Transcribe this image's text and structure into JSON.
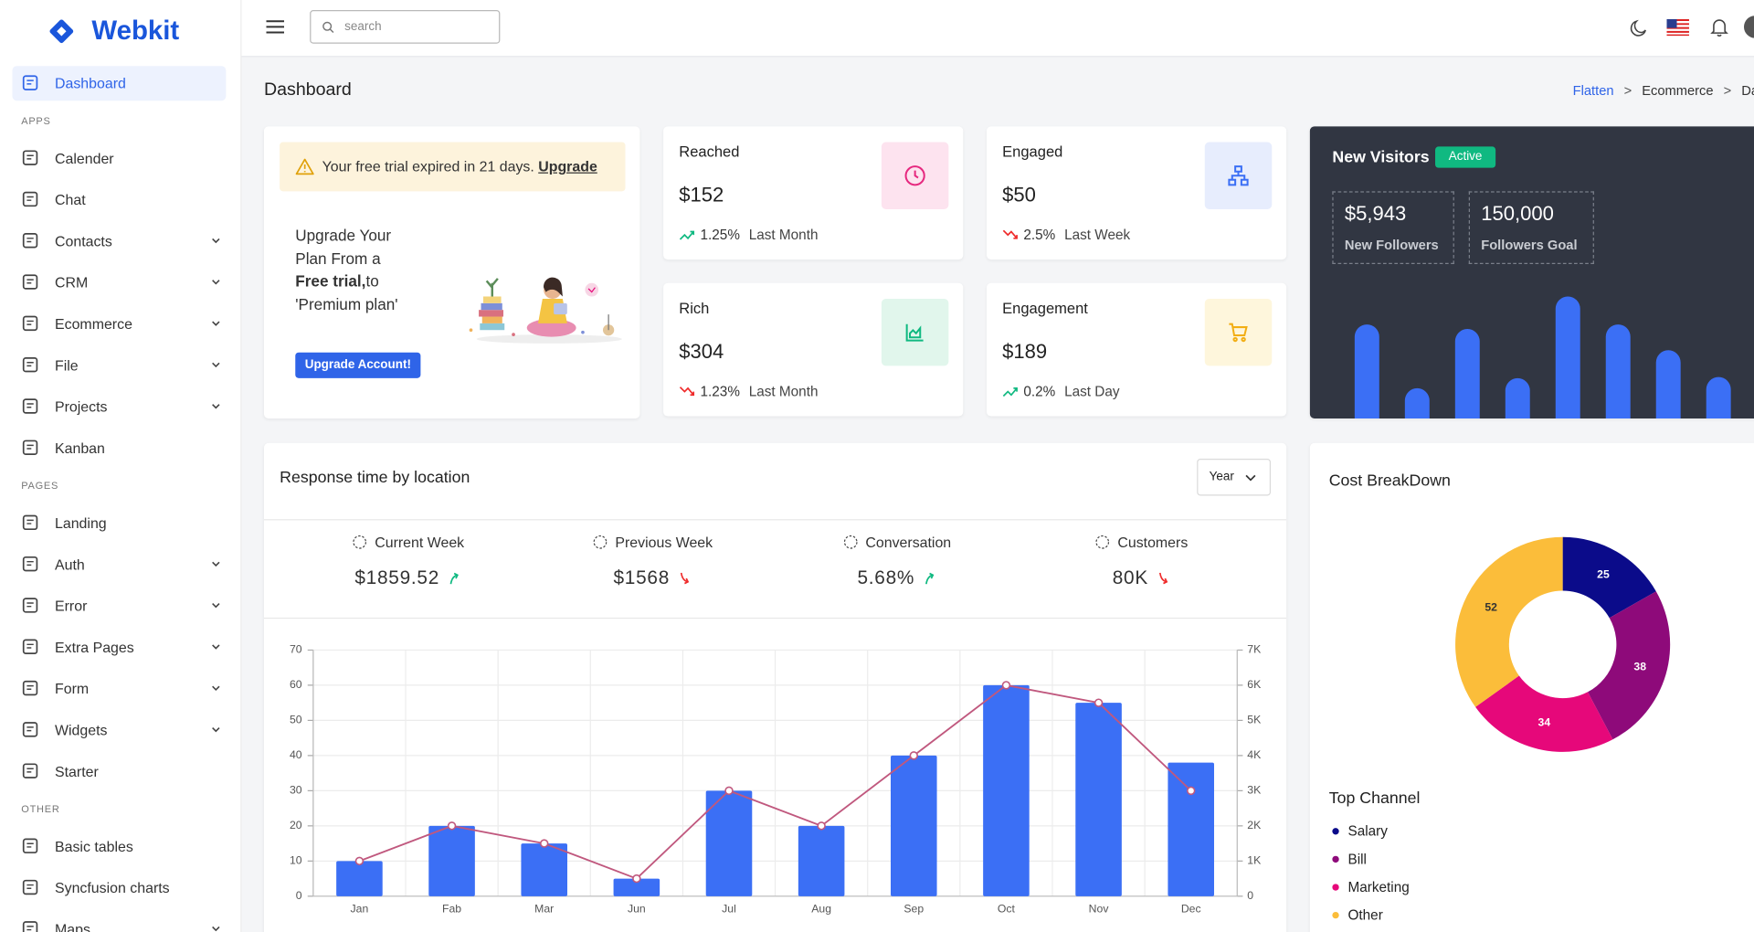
{
  "brand": "Webkit",
  "header": {
    "search_placeholder": "search"
  },
  "sidebar": {
    "top": {
      "label": "Dashboard",
      "active": true
    },
    "sections": [
      {
        "title": "APPS",
        "items": [
          {
            "label": "Calender"
          },
          {
            "label": "Chat"
          },
          {
            "label": "Contacts",
            "expandable": true
          },
          {
            "label": "CRM",
            "expandable": true
          },
          {
            "label": "Ecommerce",
            "expandable": true
          },
          {
            "label": "File",
            "expandable": true
          },
          {
            "label": "Projects",
            "expandable": true
          },
          {
            "label": "Kanban"
          }
        ]
      },
      {
        "title": "PAGES",
        "items": [
          {
            "label": "Landing"
          },
          {
            "label": "Auth",
            "expandable": true
          },
          {
            "label": "Error",
            "expandable": true
          },
          {
            "label": "Extra Pages",
            "expandable": true
          },
          {
            "label": "Form",
            "expandable": true
          },
          {
            "label": "Widgets",
            "expandable": true
          },
          {
            "label": "Starter"
          }
        ]
      },
      {
        "title": "OTHER",
        "items": [
          {
            "label": "Basic tables"
          },
          {
            "label": "Syncfusion charts"
          },
          {
            "label": "Maps",
            "expandable": true
          }
        ]
      }
    ]
  },
  "page": {
    "title": "Dashboard",
    "breadcrumb": [
      "Flatten",
      "Ecommerce",
      "Dashboard"
    ]
  },
  "trial_card": {
    "alert": "Your free trial expired in 21 days.",
    "alert_link": "Upgrade",
    "heading_lines": [
      "Upgrade Your",
      "Plan From a"
    ],
    "heading_bold": "Free trial,",
    "heading_after": "to",
    "heading_last": "'Premium plan'",
    "button": "Upgrade Account!"
  },
  "stats": [
    {
      "title": "Reached",
      "value": "$152",
      "change": "1.25%",
      "period": "Last Month",
      "trend": "up",
      "icon_color": "#e6287f",
      "icon_bg": "#fde3ef"
    },
    {
      "title": "Engaged",
      "value": "$50",
      "change": "2.5%",
      "period": "Last Week",
      "trend": "down",
      "icon_color": "#3b6ff5",
      "icon_bg": "#e7edfd"
    },
    {
      "title": "Rich",
      "value": "$304",
      "change": "1.23%",
      "period": "Last Month",
      "trend": "down",
      "icon_color": "#10b981",
      "icon_bg": "#e1f6ec"
    },
    {
      "title": "Engagement",
      "value": "$189",
      "change": "0.2%",
      "period": "Last Day",
      "trend": "up",
      "icon_color": "#f2ae14",
      "icon_bg": "#fef6dc"
    }
  ],
  "new_visitors": {
    "title": "New Visitors",
    "badge": "Active",
    "metrics": [
      {
        "value": "$5,943",
        "label": "New Followers"
      },
      {
        "value": "150,000",
        "label": "Followers Goal"
      }
    ],
    "chart": {
      "type": "bar",
      "values": [
        84,
        27,
        80,
        36,
        109,
        84,
        61,
        37
      ],
      "color": "#3b6ff5"
    }
  },
  "response": {
    "title": "Response time by location",
    "filter": "Year",
    "metrics": [
      {
        "label": "Current Week",
        "value": "$1859.52",
        "trend": "up"
      },
      {
        "label": "Previous Week",
        "value": "$1568",
        "trend": "down"
      },
      {
        "label": "Conversation",
        "value": "5.68%",
        "trend": "up"
      },
      {
        "label": "Customers",
        "value": "80K",
        "trend": "down"
      }
    ],
    "chart": {
      "type": "bar",
      "categories": [
        "Jan",
        "Fab",
        "Mar",
        "Jun",
        "Jul",
        "Aug",
        "Sep",
        "Oct",
        "Nov",
        "Dec"
      ],
      "series": [
        {
          "type": "bar",
          "color": "#3b6ff5",
          "values": [
            10,
            20,
            15,
            5,
            30,
            20,
            40,
            60,
            55,
            38
          ]
        },
        {
          "type": "line",
          "axis": "y2",
          "color": "#c0587e",
          "values": [
            1000,
            2000,
            1500,
            500,
            3000,
            2000,
            4000,
            6000,
            5500,
            3000
          ]
        }
      ],
      "ylim": [
        0,
        70
      ],
      "yticks": [
        0,
        10,
        20,
        30,
        40,
        50,
        60,
        70
      ],
      "y2lim": [
        0,
        7000
      ],
      "y2ticks": [
        0,
        {
          "value": 1000,
          "label": "1K"
        },
        {
          "value": 2000,
          "label": "2K"
        },
        {
          "value": 3000,
          "label": "3K"
        },
        {
          "value": 4000,
          "label": "4K"
        },
        {
          "value": 5000,
          "label": "5K"
        },
        {
          "value": 6000,
          "label": "6K"
        },
        {
          "value": 7000,
          "label": "7K"
        }
      ],
      "grid": true
    }
  },
  "cost": {
    "title": "Cost BreakDown",
    "chart": {
      "type": "donut",
      "values": [
        25,
        38,
        34,
        52
      ],
      "colors": [
        "#0b0b8a",
        "#8e0a7a",
        "#e6087a",
        "#fbbd3a"
      ]
    },
    "top_channel": {
      "title": "Top Channel",
      "items": [
        {
          "label": "Salary",
          "color": "#0b0b8a"
        },
        {
          "label": "Bill",
          "color": "#8e0a7a"
        },
        {
          "label": "Marketing",
          "color": "#e6087a"
        },
        {
          "label": "Other",
          "color": "#fbbd3a"
        }
      ]
    }
  }
}
